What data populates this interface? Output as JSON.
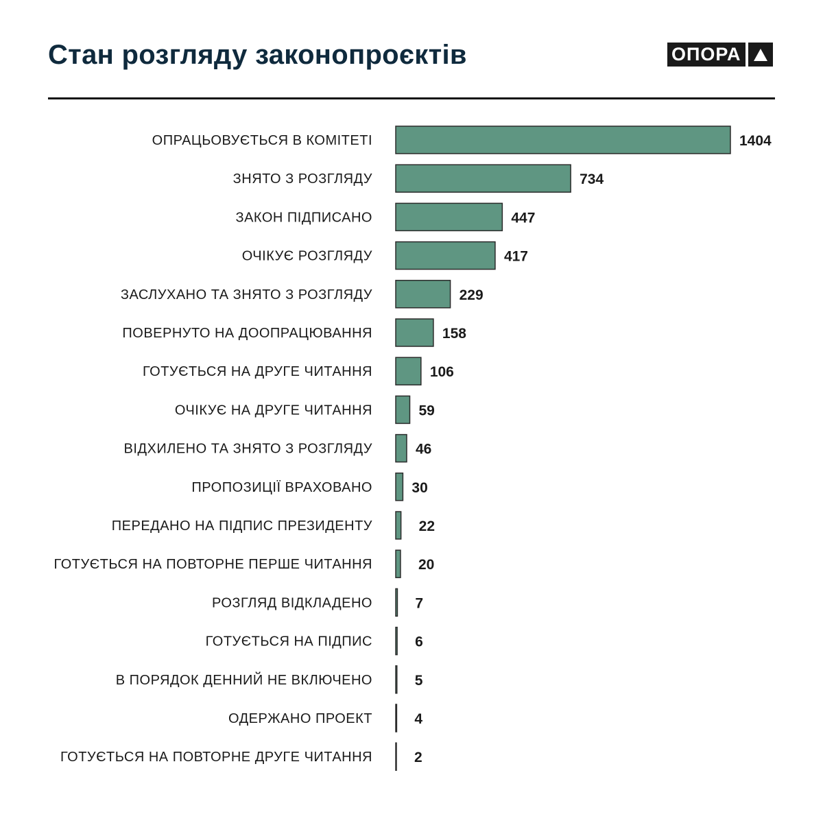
{
  "header": {
    "title": "Стан розгляду законопроєктів",
    "logo_text": "ОПОРА"
  },
  "colors": {
    "bar": "#5f9682",
    "bar_stroke": "#2b2b2b",
    "title": "#0f2a3d"
  },
  "chart_data": {
    "type": "bar",
    "orientation": "horizontal",
    "title": "Стан розгляду законопроєктів",
    "categories": [
      "ОПРАЦЬОВУЄТЬСЯ В КОМІТЕТІ",
      "ЗНЯТО З РОЗГЛЯДУ",
      "ЗАКОН ПІДПИСАНО",
      "ОЧІКУЄ РОЗГЛЯДУ",
      "ЗАСЛУХАНО ТА ЗНЯТО З РОЗГЛЯДУ",
      "ПОВЕРНУТО НА ДООПРАЦЮВАННЯ",
      "ГОТУЄТЬСЯ НА ДРУГЕ ЧИТАННЯ",
      "ОЧІКУЄ НА ДРУГЕ ЧИТАННЯ",
      "ВІДХИЛЕНО ТА ЗНЯТО З РОЗГЛЯДУ",
      "ПРОПОЗИЦІЇ ВРАХОВАНО",
      "ПЕРЕДАНО НА ПІДПИС ПРЕЗИДЕНТУ",
      "ГОТУЄТЬСЯ НА ПОВТОРНЕ ПЕРШЕ ЧИТАННЯ",
      "РОЗГЛЯД ВІДКЛАДЕНО",
      "ГОТУЄТЬСЯ НА ПІДПИС",
      "В ПОРЯДОК ДЕННИЙ НЕ ВКЛЮЧЕНО",
      "ОДЕРЖАНО ПРОЕКТ",
      "ГОТУЄТЬСЯ НА ПОВТОРНЕ ДРУГЕ ЧИТАННЯ"
    ],
    "values": [
      1404,
      734,
      447,
      417,
      229,
      158,
      106,
      59,
      46,
      30,
      22,
      20,
      7,
      6,
      5,
      4,
      2
    ],
    "xlim": [
      0,
      1404
    ],
    "xlabel": "",
    "ylabel": "",
    "grid": false,
    "legend": "none"
  }
}
